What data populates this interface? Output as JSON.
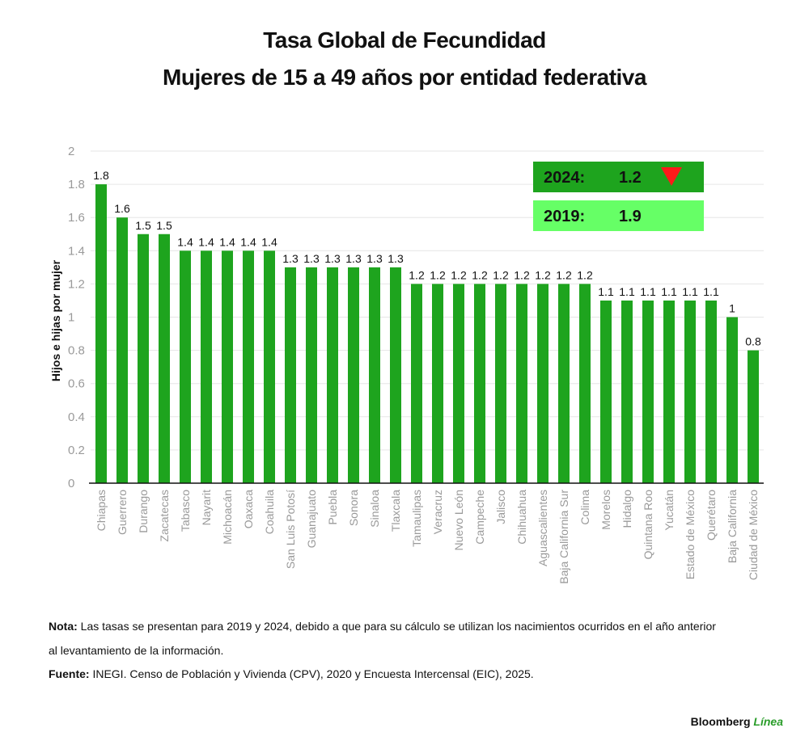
{
  "header": {
    "title": "Tasa Global de Fecundidad",
    "subtitle": "Mujeres de 15 a 49 años por entidad federativa"
  },
  "chart_data": {
    "type": "bar",
    "ylabel": "Hijos e hijas por mujer",
    "ylim": [
      0,
      2
    ],
    "yticks": [
      "0",
      "0.2",
      "0.4",
      "0.6",
      "0.8",
      "1",
      "1.2",
      "1.4",
      "1.6",
      "1.8",
      "2"
    ],
    "grid": true,
    "bar_color": "#1ea41e",
    "categories": [
      "Chiapas",
      "Guerrero",
      "Durango",
      "Zacatecas",
      "Tabasco",
      "Nayarit",
      "Michoacán",
      "Oaxaca",
      "Coahuila",
      "San Luis Potosí",
      "Guanajuato",
      "Puebla",
      "Sonora",
      "Sinaloa",
      "Tlaxcala",
      "Tamaulipas",
      "Veracruz",
      "Nuevo León",
      "Campeche",
      "Jalisco",
      "Chihuahua",
      "Aguascalientes",
      "Baja California Sur",
      "Colima",
      "Morelos",
      "Hidalgo",
      "Quintana Roo",
      "Yucatán",
      "Estado de México",
      "Querétaro",
      "Baja California",
      "Ciudad de México"
    ],
    "values": [
      1.8,
      1.6,
      1.5,
      1.5,
      1.4,
      1.4,
      1.4,
      1.4,
      1.4,
      1.3,
      1.3,
      1.3,
      1.3,
      1.3,
      1.3,
      1.2,
      1.2,
      1.2,
      1.2,
      1.2,
      1.2,
      1.2,
      1.2,
      1.2,
      1.1,
      1.1,
      1.1,
      1.1,
      1.1,
      1.1,
      1,
      0.8
    ],
    "value_labels": [
      "1.8",
      "1.6",
      "1.5",
      "1.5",
      "1.4",
      "1.4",
      "1.4",
      "1.4",
      "1.4",
      "1.3",
      "1.3",
      "1.3",
      "1.3",
      "1.3",
      "1.3",
      "1.2",
      "1.2",
      "1.2",
      "1.2",
      "1.2",
      "1.2",
      "1.2",
      "1.2",
      "1.2",
      "1.1",
      "1.1",
      "1.1",
      "1.1",
      "1.1",
      "1.1",
      "1",
      "0.8"
    ],
    "callouts": [
      {
        "year": "2024:",
        "value": "1.2",
        "color": "#1ea41e",
        "marker": "down-arrow-icon",
        "marker_color": "#ff1a1a"
      },
      {
        "year": "2019:",
        "value": "1.9",
        "color": "#66ff66"
      }
    ]
  },
  "notes": {
    "nota_label": "Nota:",
    "nota_text": "Las tasas se presentan para 2019 y 2024, debido a que para su cálculo se utilizan los nacimientos ocurridos en el año anterior",
    "nota_text2": "al levantamiento de la información.",
    "fuente_label": "Fuente:",
    "fuente_text": "INEGI. Censo de Población y Vivienda (CPV), 2020 y Encuesta Intercensal (EIC), 2025."
  },
  "brand": {
    "name": "Bloomberg",
    "accent": "Línea"
  }
}
